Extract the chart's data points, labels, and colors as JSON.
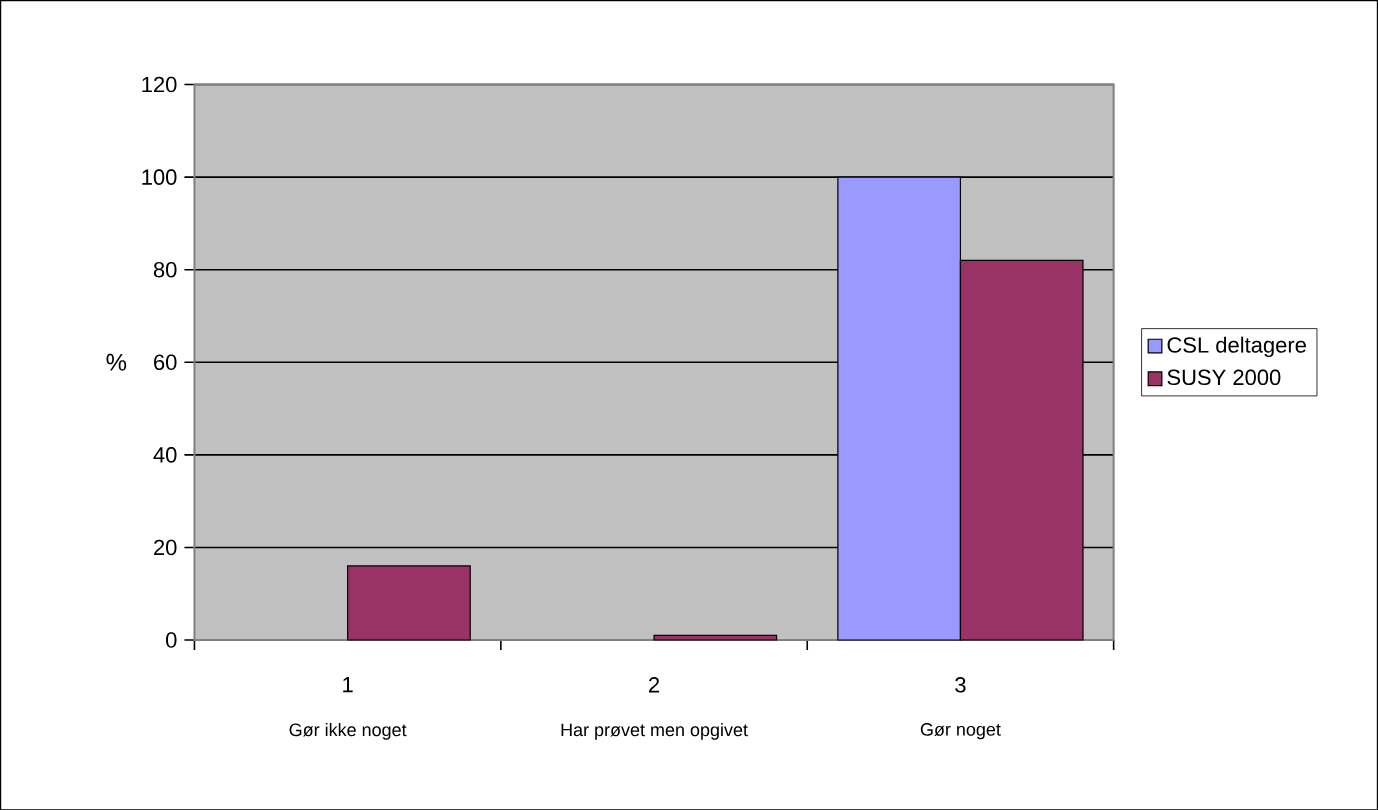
{
  "chart_data": {
    "type": "bar",
    "ylabel": "%",
    "categories": [
      "1",
      "2",
      "3"
    ],
    "series": [
      {
        "name": "CSL deltagere",
        "color": "#9999ff",
        "values": [
          0,
          0,
          100
        ]
      },
      {
        "name": "SUSY 2000",
        "color": "#993366",
        "values": [
          16,
          1,
          82
        ]
      }
    ],
    "annotations": [
      "Gør ikke noget",
      "Har prøvet men opgivet",
      "Gør noget"
    ],
    "ylim": [
      0,
      120
    ],
    "yticks": [
      0,
      20,
      40,
      60,
      80,
      100,
      120
    ],
    "grid": "y",
    "legend": "right"
  }
}
